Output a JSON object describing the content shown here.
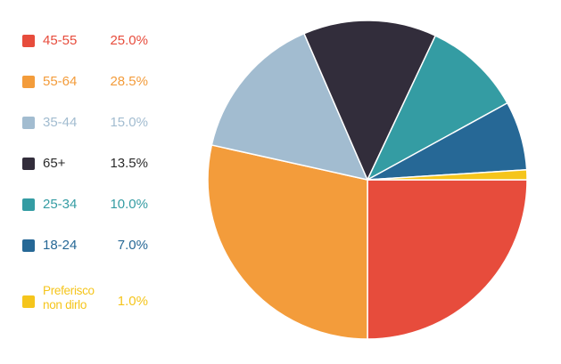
{
  "chart_data": {
    "type": "pie",
    "title": "",
    "slices": [
      {
        "label": "45-55",
        "value": 25.0,
        "value_label": "25.0%",
        "color": "#e74c3c"
      },
      {
        "label": "55-64",
        "value": 28.5,
        "value_label": "28.5%",
        "color": "#f39c3b"
      },
      {
        "label": "35-44",
        "value": 15.0,
        "value_label": "15.0%",
        "color": "#a2bcd0"
      },
      {
        "label": "65+",
        "value": 13.5,
        "value_label": "13.5%",
        "color": "#322d3b"
      },
      {
        "label": "25-34",
        "value": 10.0,
        "value_label": "10.0%",
        "color": "#349ca3"
      },
      {
        "label": "18-24",
        "value": 7.0,
        "value_label": "7.0%",
        "color": "#266896"
      },
      {
        "label": "Preferisco non dirlo",
        "value": 1.0,
        "value_label": "1.0%",
        "color": "#f5c51c"
      }
    ],
    "legend_placement": "left",
    "start_direction": "3 o'clock, clockwise"
  }
}
